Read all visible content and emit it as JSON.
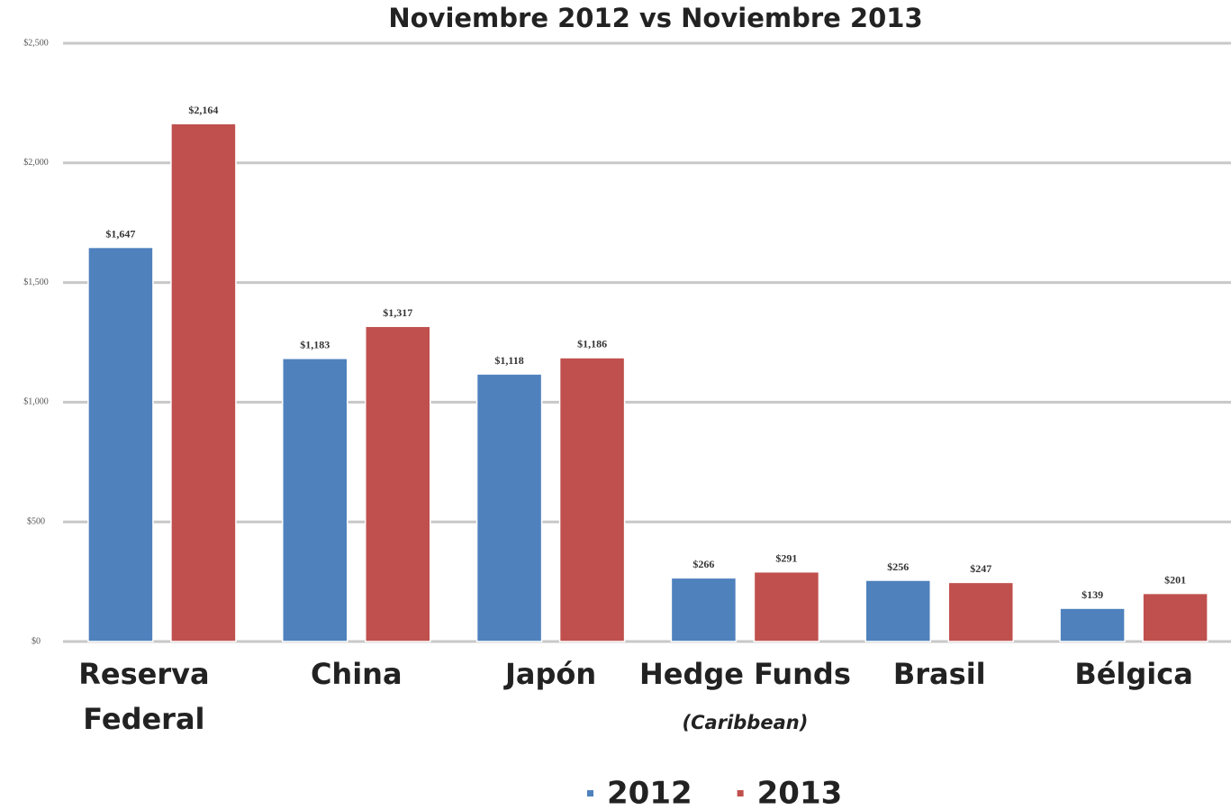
{
  "chart_data": {
    "type": "bar",
    "title": "Noviembre 2012 vs Noviembre 2013",
    "categories": [
      "Reserva Federal",
      "China",
      "Japón",
      "Hedge Funds",
      "Brasil",
      "Bélgica"
    ],
    "annotations": [
      {
        "category": 3,
        "text": "(Caribbean)"
      }
    ],
    "series": [
      {
        "name": "2012",
        "color": "#4f81bd",
        "values": [
          1647,
          1183,
          1118,
          266,
          256,
          139
        ],
        "value_labels": [
          "$1,647",
          "$1,183",
          "$1,118",
          "$266",
          "$256",
          "$139"
        ]
      },
      {
        "name": "2013",
        "color": "#c0504d",
        "values": [
          2164,
          1317,
          1186,
          291,
          247,
          201
        ],
        "value_labels": [
          "$2,164",
          "$1,317",
          "$1,186",
          "$291",
          "$247",
          "$201"
        ]
      }
    ],
    "ylim": [
      0,
      2500
    ],
    "yticks": [
      {
        "value": 0,
        "label": "$0"
      },
      {
        "value": 500,
        "label": "$500"
      },
      {
        "value": 1000,
        "label": "$1,000"
      },
      {
        "value": 1500,
        "label": "$1,500"
      },
      {
        "value": 2000,
        "label": "$2,000"
      },
      {
        "value": 2500,
        "label": "$2,500"
      }
    ],
    "grid": true,
    "legend": "bottom"
  }
}
